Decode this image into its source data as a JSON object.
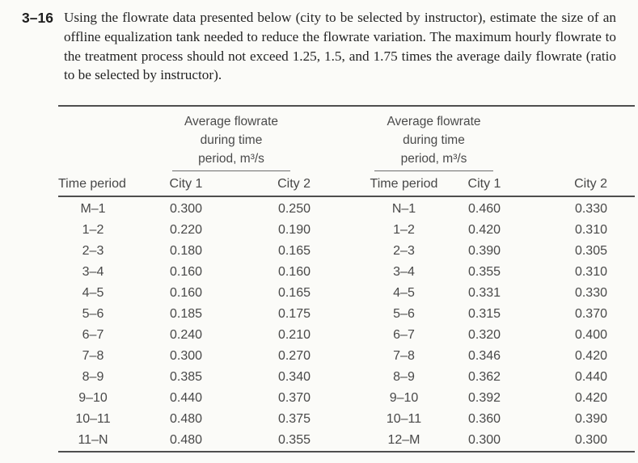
{
  "problem": {
    "number": "3–16",
    "text": "Using the flowrate data presented below (city to be selected by instructor), estimate the size of an offline equalization tank needed to reduce the flowrate variation. The maximum hourly flowrate to the treatment process should not exceed 1.25, 1.5, and 1.75 times the average daily flowrate (ratio to be selected by instructor)."
  },
  "table": {
    "span_header_lines": [
      "Average flowrate",
      "during time",
      "period, m³/s"
    ],
    "columns": {
      "time": "Time period",
      "city1": "City 1",
      "city2": "City 2"
    },
    "left_rows": [
      {
        "period": "M–1",
        "city1": "0.300",
        "city2": "0.250"
      },
      {
        "period": "1–2",
        "city1": "0.220",
        "city2": "0.190"
      },
      {
        "period": "2–3",
        "city1": "0.180",
        "city2": "0.165"
      },
      {
        "period": "3–4",
        "city1": "0.160",
        "city2": "0.160"
      },
      {
        "period": "4–5",
        "city1": "0.160",
        "city2": "0.165"
      },
      {
        "period": "5–6",
        "city1": "0.185",
        "city2": "0.175"
      },
      {
        "period": "6–7",
        "city1": "0.240",
        "city2": "0.210"
      },
      {
        "period": "7–8",
        "city1": "0.300",
        "city2": "0.270"
      },
      {
        "period": "8–9",
        "city1": "0.385",
        "city2": "0.340"
      },
      {
        "period": "9–10",
        "city1": "0.440",
        "city2": "0.370"
      },
      {
        "period": "10–11",
        "city1": "0.480",
        "city2": "0.375"
      },
      {
        "period": "11–N",
        "city1": "0.480",
        "city2": "0.355"
      }
    ],
    "right_rows": [
      {
        "period": "N–1",
        "city1": "0.460",
        "city2": "0.330"
      },
      {
        "period": "1–2",
        "city1": "0.420",
        "city2": "0.310"
      },
      {
        "period": "2–3",
        "city1": "0.390",
        "city2": "0.305"
      },
      {
        "period": "3–4",
        "city1": "0.355",
        "city2": "0.310"
      },
      {
        "period": "4–5",
        "city1": "0.331",
        "city2": "0.330"
      },
      {
        "period": "5–6",
        "city1": "0.315",
        "city2": "0.370"
      },
      {
        "period": "6–7",
        "city1": "0.320",
        "city2": "0.400"
      },
      {
        "period": "7–8",
        "city1": "0.346",
        "city2": "0.420"
      },
      {
        "period": "8–9",
        "city1": "0.362",
        "city2": "0.440"
      },
      {
        "period": "9–10",
        "city1": "0.392",
        "city2": "0.420"
      },
      {
        "period": "10–11",
        "city1": "0.360",
        "city2": "0.390"
      },
      {
        "period": "12–M",
        "city1": "0.300",
        "city2": "0.300"
      }
    ]
  },
  "colors": {
    "background": "#fbfbf8",
    "body_text": "#232323",
    "table_text": "#484848",
    "rule": "#4e4e4e"
  }
}
